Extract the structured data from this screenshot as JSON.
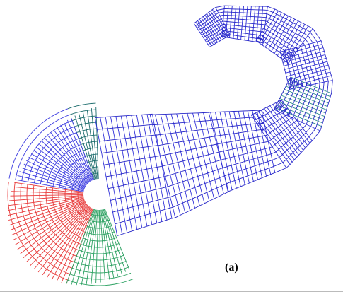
{
  "figure": {
    "label": "(a)"
  }
}
